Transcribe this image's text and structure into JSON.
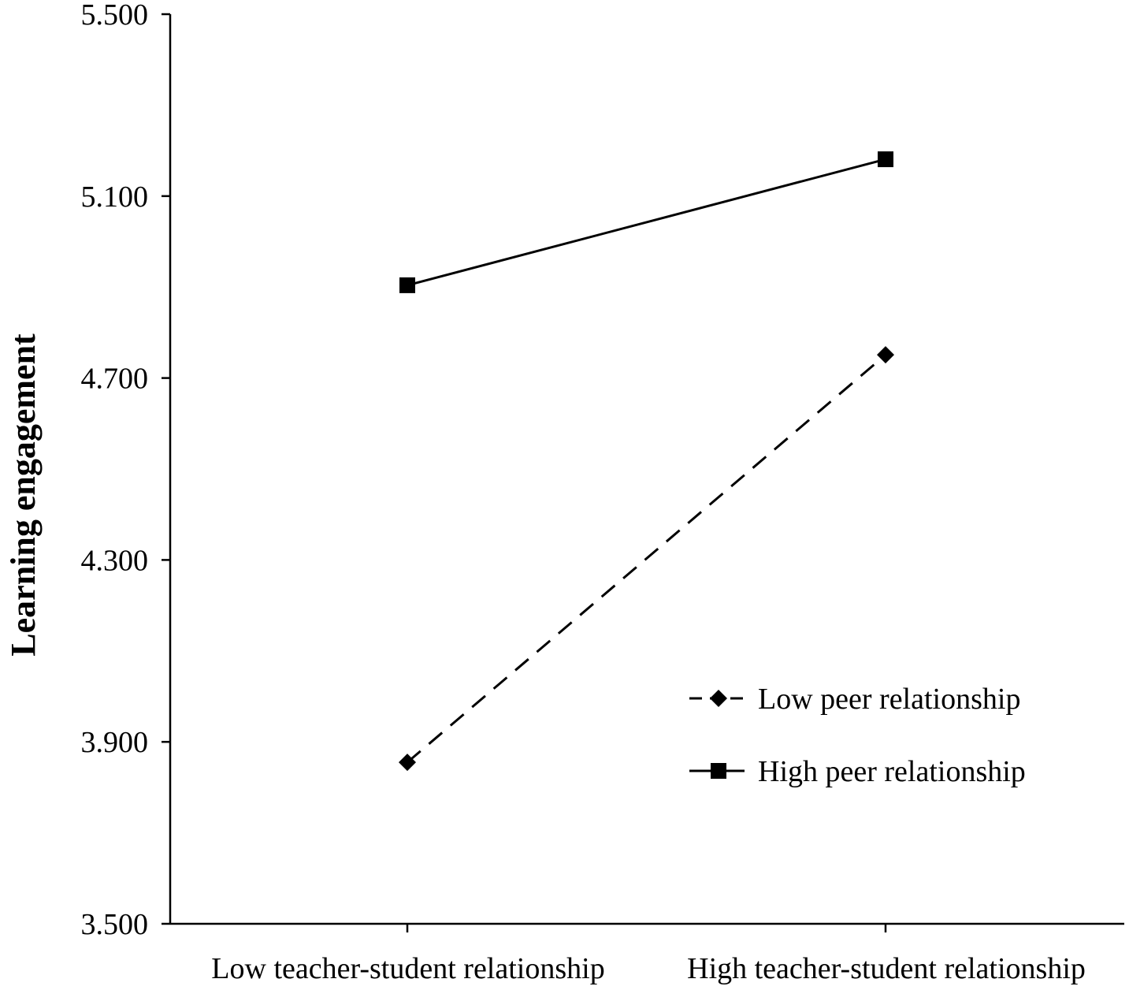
{
  "chart_data": {
    "type": "line",
    "title": "",
    "xlabel": "",
    "ylabel": "Learning engagement",
    "categories": [
      "Low teacher-student relationship",
      "High teacher-student relationship"
    ],
    "ylim": [
      3.5,
      5.5
    ],
    "yticks": [
      "3.500",
      "3.900",
      "4.300",
      "4.700",
      "5.100",
      "5.500"
    ],
    "ytick_values": [
      3.5,
      3.9,
      4.3,
      4.7,
      5.1,
      5.5
    ],
    "grid": false,
    "legend_position": "bottom-right",
    "series": [
      {
        "name": "Low peer relationship",
        "values": [
          3.855,
          4.751
        ],
        "style": "dashed",
        "marker": "diamond",
        "color": "#000000"
      },
      {
        "name": "High peer relationship",
        "values": [
          4.904,
          5.181
        ],
        "style": "solid",
        "marker": "square",
        "color": "#000000"
      }
    ]
  }
}
